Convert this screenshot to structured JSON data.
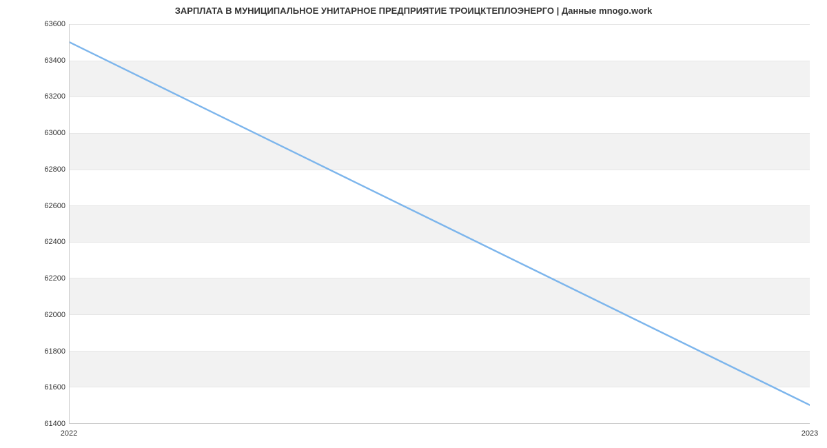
{
  "chart": {
    "type": "line",
    "title": "ЗАРПЛАТА В МУНИЦИПАЛЬНОЕ УНИТАРНОЕ ПРЕДПРИЯТИЕ ТРОИЦКТЕПЛОЭНЕРГО | Данные mnogo.work",
    "title_fontsize": 13,
    "title_color": "#333333",
    "background_color": "#ffffff",
    "plot_background": "#ffffff",
    "band_color": "#f2f2f2",
    "grid_color": "#e6e6e6",
    "axis_color": "#cccccc",
    "tick_fontsize": 11,
    "tick_color": "#333333",
    "x": {
      "categories": [
        "2022",
        "2023"
      ],
      "positions": [
        0,
        1
      ]
    },
    "y": {
      "min": 61400,
      "max": 63600,
      "tick_step": 200,
      "ticks": [
        61400,
        61600,
        61800,
        62000,
        62200,
        62400,
        62600,
        62800,
        63000,
        63200,
        63400,
        63600
      ]
    },
    "series": [
      {
        "name": "salary",
        "color": "#7cb5ec",
        "line_width": 2,
        "data": [
          {
            "x": 0,
            "y": 63500
          },
          {
            "x": 1,
            "y": 61500
          }
        ]
      }
    ]
  }
}
